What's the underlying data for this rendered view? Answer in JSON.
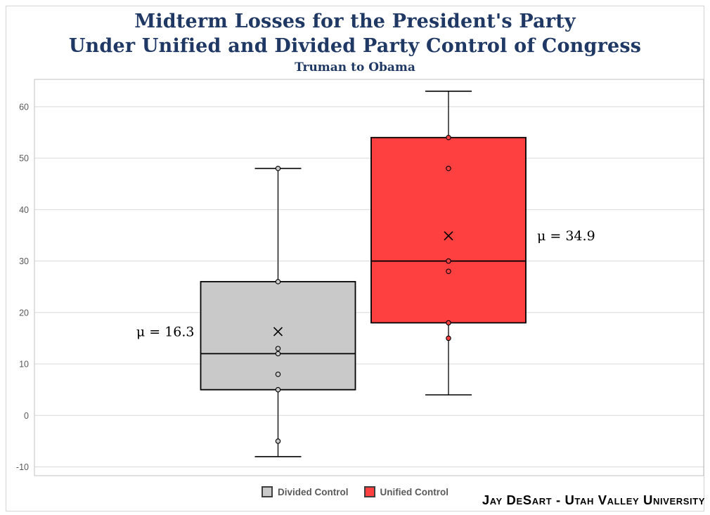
{
  "header": {
    "title_line1": "Midterm Losses for the President's Party",
    "title_line2": "Under Unified and Divided Party Control of Congress",
    "subtitle": "Truman to Obama"
  },
  "footer": {
    "attribution": "Jay DeSart - Utah Valley University"
  },
  "colors": {
    "title_text": "#1f3864",
    "gridline": "#d9d9d9",
    "plot_border": "#c0c0c0",
    "axis_label": "#595959",
    "legend_text": "#595959",
    "box_stroke": "#000000",
    "divided_fill": "#c9c9c9",
    "unified_fill": "#ff4040"
  },
  "chart_data": {
    "type": "boxplot",
    "title": "Midterm Losses for the President's Party Under Unified and Divided Party Control of Congress",
    "subtitle": "Truman to Obama",
    "ylabel": "",
    "xlabel": "",
    "ylim": [
      -11.7,
      65.3
    ],
    "yticks": [
      60,
      50,
      40,
      30,
      20,
      10,
      0,
      -10
    ],
    "grid": true,
    "legend_position": "bottom",
    "series": [
      {
        "name": "Divided Control",
        "color": "#c9c9c9",
        "whisker_low": -8,
        "q1": 5,
        "median": 12,
        "q3": 26,
        "whisker_high": 48,
        "mean": 16.3,
        "mean_label": "μ = 16.3",
        "mean_label_side": "left",
        "points": [
          48,
          26,
          13,
          12,
          8,
          5,
          -5
        ]
      },
      {
        "name": "Unified Control",
        "color": "#ff4040",
        "whisker_low": 4,
        "q1": 18,
        "median": 30,
        "q3": 54,
        "whisker_high": 63,
        "mean": 34.9,
        "mean_label": "μ = 34.9",
        "mean_label_side": "right",
        "points": [
          54,
          48,
          30,
          28,
          18,
          15
        ]
      }
    ]
  }
}
